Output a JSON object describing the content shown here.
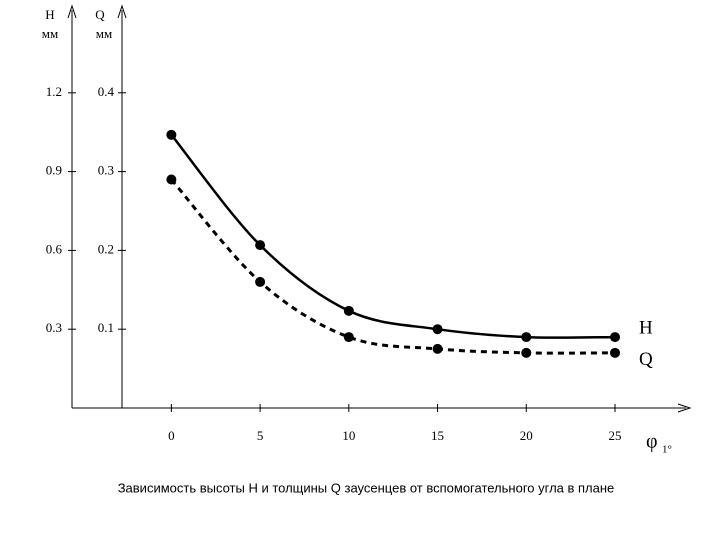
{
  "chart_data": {
    "type": "line",
    "y_label": "H",
    "y_unit": "мм",
    "y2_label": "Q",
    "y2_unit": "мм",
    "x_label": "φ",
    "x_label_sub": "1°",
    "caption": "Зависимость высоты H и толщины Q заусенцев от вспомогательного угла в плане",
    "x": [
      0,
      5,
      10,
      15,
      20,
      25
    ],
    "xlim": [
      -5.6,
      29
    ],
    "xticks": [
      0,
      5,
      10,
      15,
      20,
      25
    ],
    "ylim": [
      0,
      1.5
    ],
    "yticks": [
      0.3,
      0.6,
      0.9,
      1.2
    ],
    "y2lim": [
      0,
      0.5
    ],
    "y2ticks": [
      0.1,
      0.2,
      0.3,
      0.4
    ],
    "series": [
      {
        "name": "H",
        "color": "#000000",
        "dashed": false,
        "values": [
          1.04,
          0.62,
          0.37,
          0.3,
          0.27,
          0.27
        ]
      },
      {
        "name": "Q",
        "color": "#000000",
        "dashed": true,
        "axis": "y2",
        "values": [
          0.29,
          0.16,
          0.09,
          0.075,
          0.07,
          0.07
        ]
      }
    ]
  }
}
